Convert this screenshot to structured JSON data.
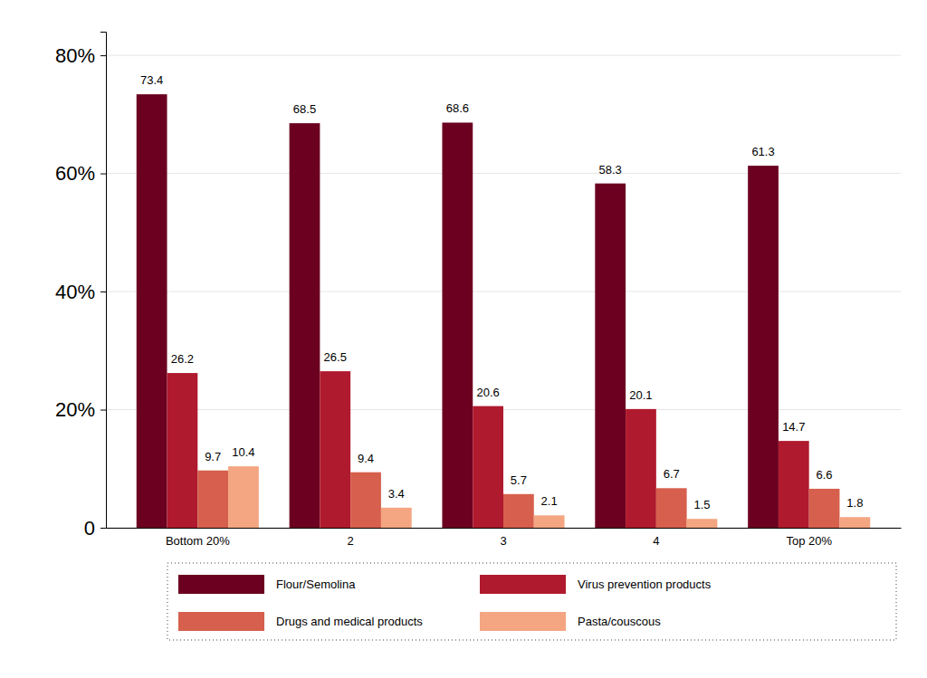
{
  "chart_data": {
    "type": "bar",
    "categories": [
      "Bottom 20%",
      "2",
      "3",
      "4",
      "Top 20%"
    ],
    "series": [
      {
        "name": "Flour/Semolina",
        "color": "#6b0020",
        "values": [
          73.4,
          68.5,
          68.6,
          58.3,
          61.3
        ]
      },
      {
        "name": "Virus prevention products",
        "color": "#b01a2e",
        "values": [
          26.2,
          26.5,
          20.6,
          20.1,
          14.7
        ]
      },
      {
        "name": "Drugs and medical products",
        "color": "#d6604d",
        "values": [
          9.7,
          9.4,
          5.7,
          6.7,
          6.6
        ]
      },
      {
        "name": "Pasta/couscous",
        "color": "#f4a582",
        "values": [
          10.4,
          3.4,
          2.1,
          1.5,
          1.8
        ]
      }
    ],
    "ylim": [
      0,
      84
    ],
    "yticks": [
      0,
      {
        "value": 20,
        "label": "20%"
      },
      {
        "value": 40,
        "label": "40%"
      },
      {
        "value": 60,
        "label": "60%"
      },
      {
        "value": 80,
        "label": "80%"
      }
    ],
    "grid": true,
    "data_labels": true,
    "legend": "bottom"
  }
}
